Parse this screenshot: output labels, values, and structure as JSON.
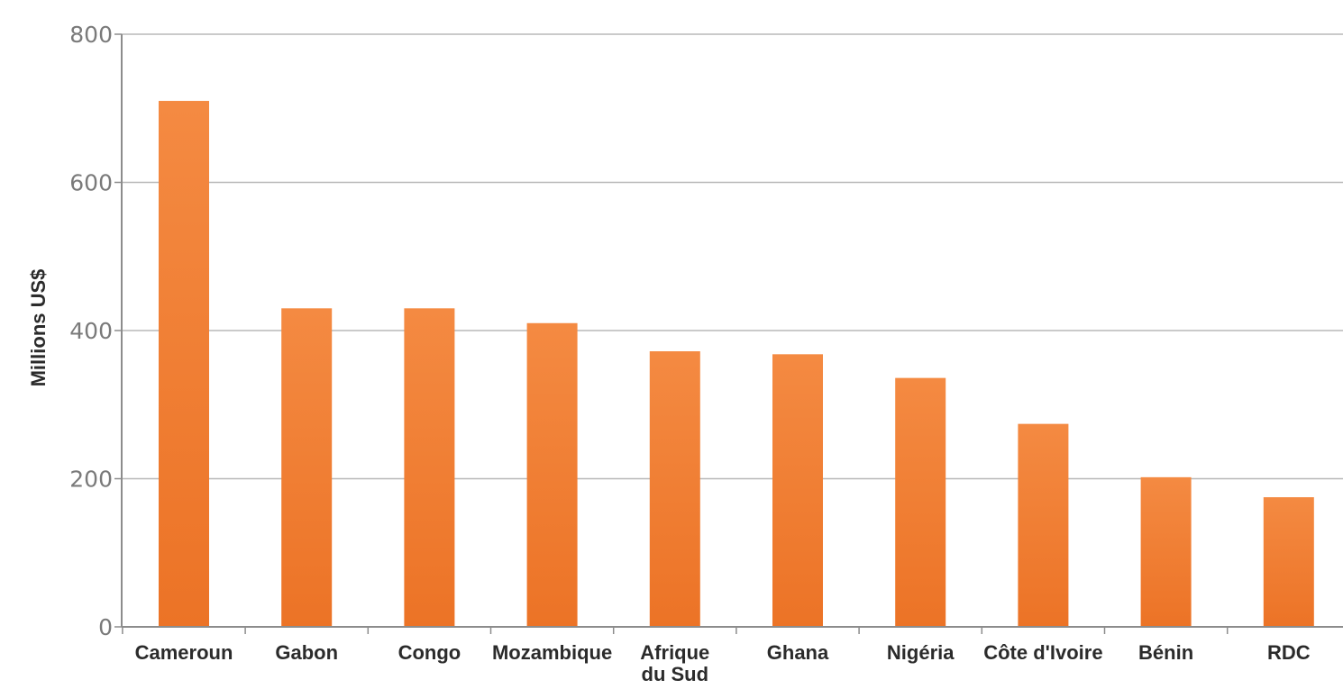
{
  "chart_data": {
    "type": "bar",
    "title": "",
    "xlabel": "",
    "ylabel": "Millions US$",
    "ylim": [
      0,
      800
    ],
    "yticks": [
      0,
      200,
      400,
      600,
      800
    ],
    "grid": true,
    "legend": "none",
    "bar_color": "#f07f35",
    "bar_color_light": "#f48a42",
    "bar_color_dark": "#ec7326",
    "categories": [
      "Cameroun",
      "Gabon",
      "Congo",
      "Mozambique",
      "Afrique du Sud",
      "Ghana",
      "Nigéria",
      "Côte d'Ivoire",
      "Bénin",
      "RDC"
    ],
    "category_lines": [
      [
        "Cameroun"
      ],
      [
        "Gabon"
      ],
      [
        "Congo"
      ],
      [
        "Mozambique"
      ],
      [
        "Afrique",
        "du Sud"
      ],
      [
        "Ghana"
      ],
      [
        "Nigéria"
      ],
      [
        "Côte d'Ivoire"
      ],
      [
        "Bénin"
      ],
      [
        "RDC"
      ]
    ],
    "values": [
      710,
      430,
      430,
      410,
      372,
      368,
      336,
      274,
      202,
      175
    ]
  }
}
